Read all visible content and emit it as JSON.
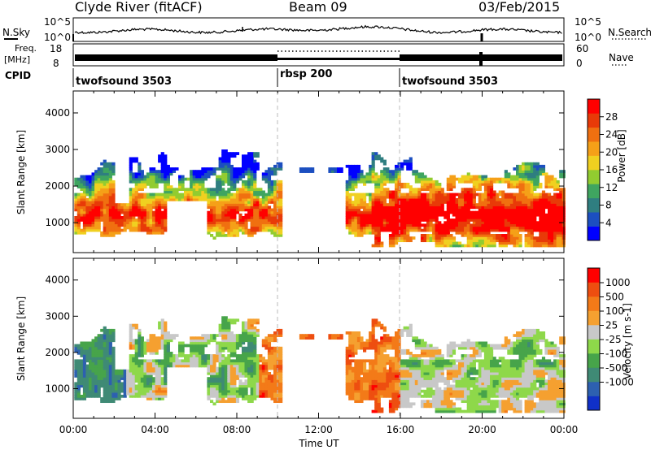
{
  "header": {
    "station": "Clyde River (fitACF)",
    "beam": "Beam 09",
    "date": "03/Feb/2015"
  },
  "top_panels": {
    "nsky": {
      "left_label": "N.Sky",
      "right_label": "N.Search",
      "left_ticks": [
        "10^5",
        "10^0"
      ],
      "right_ticks": [
        "10^5",
        "10^0"
      ]
    },
    "freq": {
      "left_label_line1": "Freq.",
      "left_label_line2": "[MHz]",
      "right_label": "Nave",
      "left_ticks": [
        "18",
        "8"
      ],
      "right_ticks": [
        "60",
        "0"
      ]
    },
    "cpid": {
      "label": "CPID",
      "segments": [
        {
          "name": "twofsound 3503",
          "start_hour": 0,
          "end_hour": 10
        },
        {
          "name": "rbsp 200",
          "start_hour": 10,
          "end_hour": 16
        },
        {
          "name": "twofsound 3503",
          "start_hour": 16,
          "end_hour": 24
        }
      ]
    }
  },
  "chart_data": [
    {
      "type": "heatmap",
      "quantity": "power",
      "ylabel": "Slant Range [km]",
      "xlim": [
        0,
        24
      ],
      "ylim": [
        180,
        4600
      ],
      "yticks": [
        "1000",
        "2000",
        "3000",
        "4000"
      ],
      "colorbar": {
        "label": "Power [dB]",
        "ticks": [
          "4",
          "8",
          "12",
          "16",
          "20",
          "24",
          "28"
        ],
        "colors": [
          "#0000ff",
          "#1c4fc0",
          "#2f7e80",
          "#3fa560",
          "#92cc30",
          "#f0d020",
          "#f5a018",
          "#f07010",
          "#e83a08",
          "#ff0000"
        ]
      }
    },
    {
      "type": "heatmap",
      "quantity": "velocity",
      "ylabel": "Slant Range [km]",
      "xlabel": "Time UT",
      "xlim": [
        0,
        24
      ],
      "ylim": [
        180,
        4600
      ],
      "yticks": [
        "1000",
        "2000",
        "3000",
        "4000"
      ],
      "xticks": [
        "00:00",
        "04:00",
        "08:00",
        "12:00",
        "16:00",
        "20:00",
        "00:00"
      ],
      "colorbar": {
        "label": "Velocity [m s-1]",
        "ticks": [
          "1000",
          "500",
          "100",
          "25",
          "-25",
          "-100",
          "-500",
          "-1000"
        ],
        "colors": [
          "#1030c8",
          "#2d60b0",
          "#3f8a75",
          "#47a44a",
          "#8ed84a",
          "#c8c8c8",
          "#f5a030",
          "#f37a18",
          "#ee4e10",
          "#ff0000"
        ]
      }
    }
  ]
}
